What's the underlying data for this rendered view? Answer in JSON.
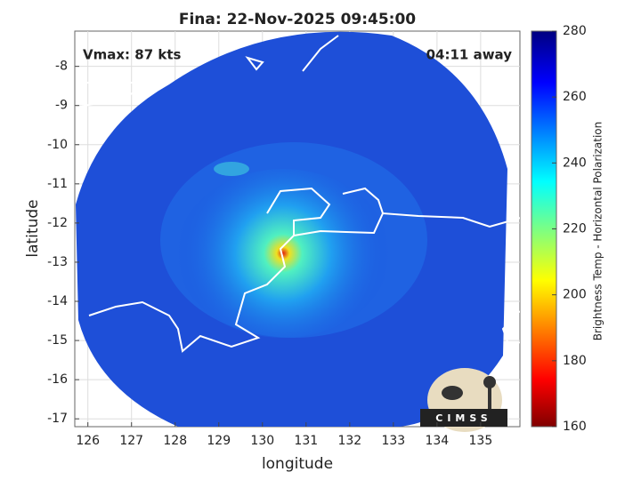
{
  "chart_data": {
    "type": "image",
    "title": "Fina: 22-Nov-2025 09:45:00",
    "annotations": [
      "Vmax: 87 kts",
      "04:11 away"
    ],
    "x_label": "longitude",
    "y_label": "latitude",
    "xlim": [
      125.7,
      135.9
    ],
    "ylim": [
      -17.2,
      -7.1
    ],
    "xticks": [
      126,
      127,
      128,
      129,
      130,
      131,
      132,
      133,
      134,
      135
    ],
    "yticks": [
      -17,
      -16,
      -15,
      -14,
      -13,
      -12,
      -11,
      -10,
      -9,
      -8
    ],
    "grid": true,
    "colorbar": {
      "label": "Brightness Temp - Horizontal Polarization",
      "lim": [
        160,
        280
      ],
      "ticks": [
        160,
        180,
        200,
        220,
        240,
        260,
        280
      ]
    },
    "logo": "CIMSS"
  }
}
